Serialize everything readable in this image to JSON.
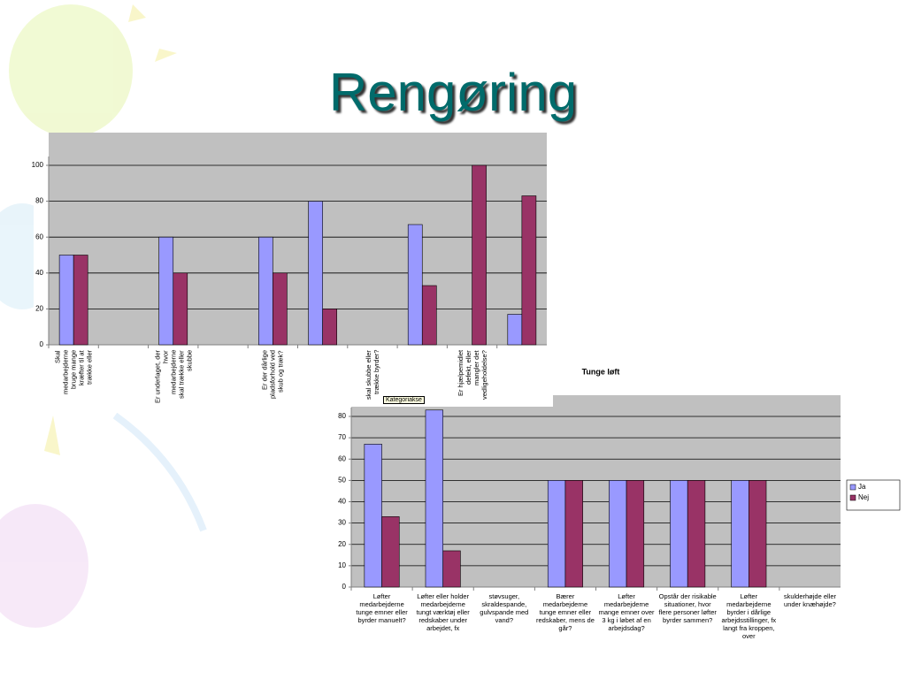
{
  "title": "Rengøring",
  "chart_data": [
    {
      "type": "bar",
      "categories": [
        "Skal medarbejderne bruge mange kræfter til at trække eller",
        null,
        "Er underlaget, der hvor medarbejderne skal trække eller skubbe",
        null,
        "Er der dårlige pladsforhold ved skub og træk?",
        null,
        "skal skubbe eller trække byrder?",
        null,
        "Er hjælpemidlet defekt, eller mangler det vedligeholdelse?",
        null
      ],
      "series": [
        {
          "color": "#9999ff",
          "values": [
            50,
            null,
            60,
            null,
            60,
            80,
            null,
            67,
            null,
            17
          ]
        },
        {
          "color": "#993366",
          "values": [
            50,
            null,
            40,
            null,
            40,
            20,
            null,
            33,
            100,
            83
          ]
        }
      ],
      "ylim": [
        0,
        100
      ],
      "yticks": [
        0,
        20,
        40,
        60,
        80,
        100
      ],
      "grid": true
    },
    {
      "type": "bar",
      "title": "Tunge løft",
      "annotation": "Kategoriakse",
      "categories": [
        "Løfter medarbejderne tunge emner eller byrder manuelt?",
        "Løfter eller holder medarbejderne tungt værktøj eller redskaber under arbejdet, fx",
        "støvsuger, skraldespande, gulvspande med vand?",
        "Bærer medarbejderne tunge emner eller redskaber, mens de går?",
        "Løfter medarbejderne mange emner over 3 kg i løbet af en arbejdsdag?",
        "Opstår der risikable situationer, hvor flere personer løfter byrder sammen?",
        "Løfter medarbejderne byrder i dårlige arbejdsstillinger, fx langt fra kroppen, over",
        "skulderhøjde eller under knæhøjde?"
      ],
      "series": [
        {
          "name": "Ja",
          "color": "#9999ff",
          "values": [
            67,
            83,
            null,
            50,
            50,
            50,
            50,
            null
          ]
        },
        {
          "name": "Nej",
          "color": "#993366",
          "values": [
            33,
            17,
            null,
            50,
            50,
            50,
            50,
            null
          ]
        }
      ],
      "ylim": [
        0,
        80
      ],
      "yticks": [
        0,
        10,
        20,
        30,
        40,
        50,
        60,
        70,
        80
      ],
      "grid": true
    }
  ]
}
